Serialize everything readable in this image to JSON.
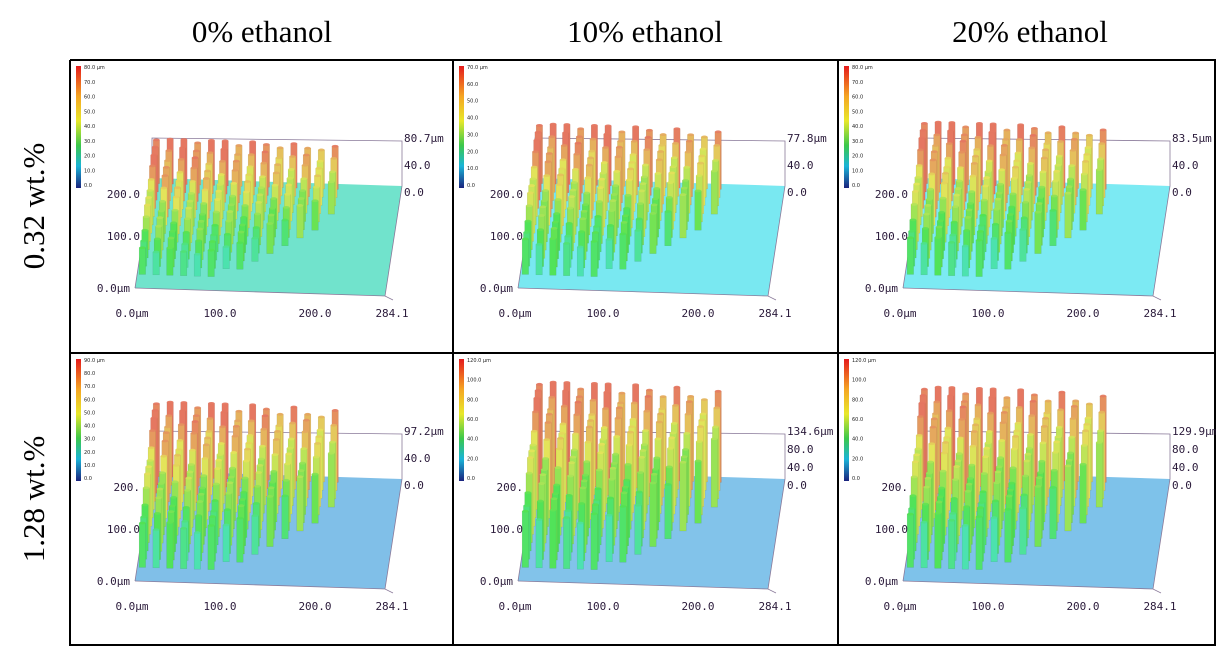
{
  "column_headers": [
    "0% ethanol",
    "10% ethanol",
    "20% ethanol"
  ],
  "row_headers": [
    "0.32 wt.%",
    "1.28 wt.%"
  ],
  "panels": [
    {
      "colorbar": [
        "80.0 μm",
        "70.0",
        "60.0",
        "50.0",
        "40.0",
        "30.0",
        "20.0",
        "10.0",
        "0.0"
      ],
      "z_labels": [
        "80.7μm",
        "40.0",
        "0.0"
      ],
      "y_labels": [
        "200.0",
        "100.0",
        "0.0μm"
      ],
      "x_labels": [
        "0.0μm",
        "100.0",
        "200.0",
        "284.1"
      ]
    },
    {
      "colorbar": [
        "70.0 μm",
        "60.0",
        "50.0",
        "40.0",
        "30.0",
        "20.0",
        "10.0",
        "0.0"
      ],
      "z_labels": [
        "77.8μm",
        "40.0",
        "0.0"
      ],
      "y_labels": [
        "200.0",
        "100.0",
        "0.0μm"
      ],
      "x_labels": [
        "0.0μm",
        "100.0",
        "200.0",
        "284.1"
      ]
    },
    {
      "colorbar": [
        "80.0 μm",
        "70.0",
        "60.0",
        "50.0",
        "40.0",
        "30.0",
        "20.0",
        "10.0",
        "0.0"
      ],
      "z_labels": [
        "83.5μm",
        "40.0",
        "0.0"
      ],
      "y_labels": [
        "200.0",
        "100.0",
        "0.0μm"
      ],
      "x_labels": [
        "0.0μm",
        "100.0",
        "200.0",
        "284.1"
      ]
    },
    {
      "colorbar": [
        "90.0 μm",
        "80.0",
        "70.0",
        "60.0",
        "50.0",
        "40.0",
        "30.0",
        "20.0",
        "10.0",
        "0.0"
      ],
      "z_labels": [
        "97.2μm",
        "40.0",
        "0.0"
      ],
      "y_labels": [
        "200.",
        "100.0",
        "0.0μm"
      ],
      "x_labels": [
        "0.0μm",
        "100.0",
        "200.0",
        "284.1"
      ]
    },
    {
      "colorbar": [
        "120.0 μm",
        "100.0",
        "80.0",
        "60.0",
        "40.0",
        "20.0",
        "0.0"
      ],
      "z_labels": [
        "134.6μm",
        "80.0",
        "40.0",
        "0.0"
      ],
      "y_labels": [
        "200.",
        "100.0",
        "0.0μm"
      ],
      "x_labels": [
        "0.0μm",
        "100.0",
        "200.0",
        "284.1"
      ]
    },
    {
      "colorbar": [
        "120.0 μm",
        "100.0",
        "80.0",
        "60.0",
        "40.0",
        "20.0",
        "0.0"
      ],
      "z_labels": [
        "129.9μm",
        "80.0",
        "40.0",
        "0.0"
      ],
      "y_labels": [
        "200.",
        "100.0",
        "0.0μm"
      ],
      "x_labels": [
        "0.0μm",
        "100.0",
        "200.0",
        "284.1"
      ]
    }
  ]
}
